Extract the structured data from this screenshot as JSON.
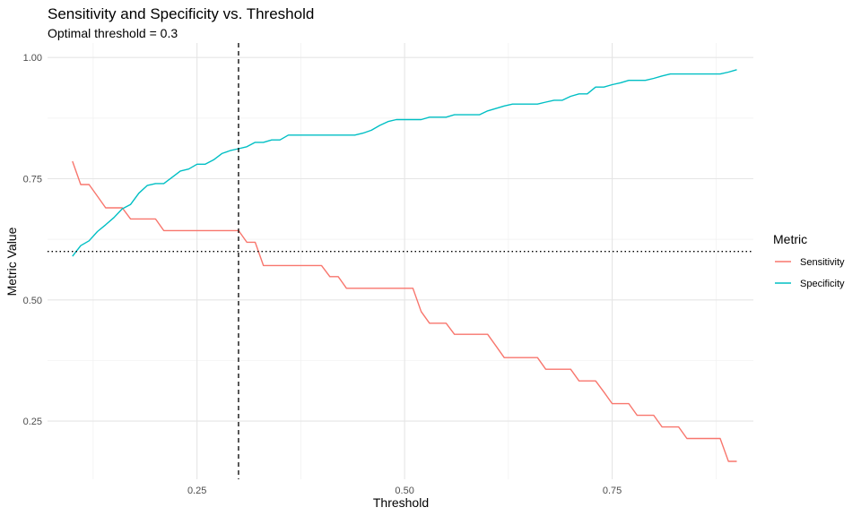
{
  "chart_data": {
    "type": "line",
    "title": "Sensitivity and Specificity vs. Threshold",
    "subtitle": "Optimal threshold = 0.3",
    "xlabel": "Threshold",
    "ylabel": "Metric Value",
    "xlim": [
      0.07,
      0.92
    ],
    "ylim": [
      0.13,
      1.03
    ],
    "x_ticks": [
      0.25,
      0.5,
      0.75
    ],
    "x_tick_labels": [
      "0.25",
      "0.50",
      "0.75"
    ],
    "y_ticks": [
      0.25,
      0.5,
      0.75,
      1.0
    ],
    "y_tick_labels": [
      "0.25",
      "0.50",
      "0.75",
      "1.00"
    ],
    "grid": true,
    "vline": {
      "x": 0.3,
      "style": "dashed"
    },
    "hline": {
      "y": 0.6,
      "style": "dotted"
    },
    "legend": {
      "title": "Metric",
      "position": "right"
    },
    "series": [
      {
        "name": "Sensitivity",
        "color": "#F8766D",
        "x": [
          0.1,
          0.11,
          0.12,
          0.13,
          0.14,
          0.15,
          0.16,
          0.17,
          0.18,
          0.19,
          0.2,
          0.21,
          0.22,
          0.23,
          0.24,
          0.25,
          0.26,
          0.27,
          0.28,
          0.29,
          0.3,
          0.31,
          0.32,
          0.33,
          0.34,
          0.35,
          0.36,
          0.37,
          0.38,
          0.39,
          0.4,
          0.41,
          0.42,
          0.43,
          0.44,
          0.45,
          0.46,
          0.47,
          0.48,
          0.49,
          0.5,
          0.51,
          0.52,
          0.53,
          0.54,
          0.55,
          0.56,
          0.57,
          0.58,
          0.59,
          0.6,
          0.61,
          0.62,
          0.63,
          0.64,
          0.65,
          0.66,
          0.67,
          0.68,
          0.69,
          0.7,
          0.71,
          0.72,
          0.73,
          0.74,
          0.75,
          0.76,
          0.77,
          0.78,
          0.79,
          0.8,
          0.81,
          0.82,
          0.83,
          0.84,
          0.85,
          0.86,
          0.87,
          0.88,
          0.89,
          0.9
        ],
        "values": [
          0.786,
          0.738,
          0.738,
          0.714,
          0.69,
          0.69,
          0.69,
          0.667,
          0.667,
          0.667,
          0.667,
          0.643,
          0.643,
          0.643,
          0.643,
          0.643,
          0.643,
          0.643,
          0.643,
          0.643,
          0.643,
          0.619,
          0.619,
          0.571,
          0.571,
          0.571,
          0.571,
          0.571,
          0.571,
          0.571,
          0.571,
          0.548,
          0.548,
          0.524,
          0.524,
          0.524,
          0.524,
          0.524,
          0.524,
          0.524,
          0.524,
          0.524,
          0.476,
          0.452,
          0.452,
          0.452,
          0.429,
          0.429,
          0.429,
          0.429,
          0.429,
          0.405,
          0.381,
          0.381,
          0.381,
          0.381,
          0.381,
          0.357,
          0.357,
          0.357,
          0.357,
          0.333,
          0.333,
          0.333,
          0.31,
          0.286,
          0.286,
          0.286,
          0.262,
          0.262,
          0.262,
          0.238,
          0.238,
          0.238,
          0.214,
          0.214,
          0.214,
          0.214,
          0.214,
          0.167,
          0.167
        ]
      },
      {
        "name": "Specificity",
        "color": "#00BFC4",
        "x": [
          0.1,
          0.11,
          0.12,
          0.13,
          0.14,
          0.15,
          0.16,
          0.17,
          0.18,
          0.19,
          0.2,
          0.21,
          0.22,
          0.23,
          0.24,
          0.25,
          0.26,
          0.27,
          0.28,
          0.29,
          0.3,
          0.31,
          0.32,
          0.33,
          0.34,
          0.35,
          0.36,
          0.37,
          0.38,
          0.39,
          0.4,
          0.41,
          0.42,
          0.43,
          0.44,
          0.45,
          0.46,
          0.47,
          0.48,
          0.49,
          0.5,
          0.51,
          0.52,
          0.53,
          0.54,
          0.55,
          0.56,
          0.57,
          0.58,
          0.59,
          0.6,
          0.61,
          0.62,
          0.63,
          0.64,
          0.65,
          0.66,
          0.67,
          0.68,
          0.69,
          0.7,
          0.71,
          0.72,
          0.73,
          0.74,
          0.75,
          0.76,
          0.77,
          0.78,
          0.79,
          0.8,
          0.81,
          0.82,
          0.83,
          0.84,
          0.85,
          0.86,
          0.87,
          0.88,
          0.89,
          0.9
        ],
        "values": [
          0.59,
          0.612,
          0.622,
          0.641,
          0.655,
          0.67,
          0.688,
          0.697,
          0.72,
          0.736,
          0.74,
          0.74,
          0.753,
          0.766,
          0.77,
          0.78,
          0.78,
          0.789,
          0.802,
          0.808,
          0.812,
          0.816,
          0.825,
          0.825,
          0.83,
          0.83,
          0.84,
          0.84,
          0.84,
          0.84,
          0.84,
          0.84,
          0.84,
          0.84,
          0.84,
          0.844,
          0.85,
          0.86,
          0.868,
          0.872,
          0.872,
          0.872,
          0.872,
          0.877,
          0.877,
          0.877,
          0.882,
          0.882,
          0.882,
          0.882,
          0.89,
          0.895,
          0.9,
          0.904,
          0.904,
          0.904,
          0.904,
          0.908,
          0.912,
          0.912,
          0.92,
          0.925,
          0.925,
          0.939,
          0.939,
          0.944,
          0.948,
          0.953,
          0.953,
          0.953,
          0.957,
          0.962,
          0.966,
          0.966,
          0.966,
          0.966,
          0.966,
          0.966,
          0.966,
          0.97,
          0.975
        ]
      }
    ]
  }
}
